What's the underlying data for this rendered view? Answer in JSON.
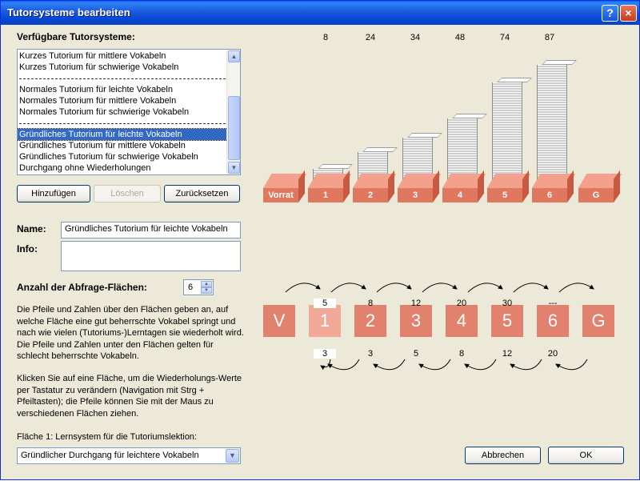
{
  "window": {
    "title": "Tutorsysteme bearbeiten",
    "help_button": "?",
    "close_button": "×"
  },
  "list_section": {
    "label": "Verfügbare Tutorsysteme:"
  },
  "list_items": [
    {
      "label": "Kurzes Tutorium für mittlere Vokabeln",
      "sep": false,
      "sel": false
    },
    {
      "label": "Kurzes Tutorium für schwierige Vokabeln",
      "sep": false,
      "sel": false
    },
    {
      "label": "",
      "sep": true,
      "sel": false
    },
    {
      "label": "Normales Tutorium für leichte Vokabeln",
      "sep": false,
      "sel": false
    },
    {
      "label": "Normales Tutorium für mittlere Vokabeln",
      "sep": false,
      "sel": false
    },
    {
      "label": "Normales Tutorium für schwierige Vokabeln",
      "sep": false,
      "sel": false
    },
    {
      "label": "",
      "sep": true,
      "sel": false
    },
    {
      "label": "Gründliches Tutorium für leichte Vokabeln",
      "sep": false,
      "sel": true
    },
    {
      "label": "Gründliches Tutorium für mittlere Vokabeln",
      "sep": false,
      "sel": false
    },
    {
      "label": "Gründliches Tutorium für schwierige Vokabeln",
      "sep": false,
      "sel": false
    },
    {
      "label": "Durchgang ohne Wiederholungen",
      "sep": false,
      "sel": false
    }
  ],
  "buttons": {
    "add": "Hinzufügen",
    "delete": "Löschen",
    "reset": "Zurücksetzen",
    "cancel": "Abbrechen",
    "ok": "OK"
  },
  "form": {
    "name_label": "Name:",
    "name_value": "Gründliches Tutorium für leichte Vokabeln",
    "info_label": "Info:",
    "info_value": "",
    "areas_label": "Anzahl der Abfrage-Flächen:",
    "areas_value": "6"
  },
  "help_text_1": "Die Pfeile und Zahlen über den Flächen geben an, auf welche Fläche eine gut beherrschte Vokabel springt und nach wie vielen (Tutoriums-)Lerntagen sie wiederholt wird. Die Pfeile und Zahlen unter den Flächen gelten für schlecht beherrschte Vokabeln.",
  "help_text_2": "Klicken Sie auf eine Fläche, um die Wiederholungs-Werte per Tastatur zu verändern (Navigation mit Strg + Pfeiltasten); die Pfeile können Sie mit der Maus zu verschiedenen Flächen ziehen.",
  "area1_label": "Fläche 1: Lernsystem für die Tutoriumslektion:",
  "area1_value": "Gründlicher Durchgang für leichtere Vokabeln",
  "boxes": [
    {
      "label": "Vorrat",
      "count": ""
    },
    {
      "label": "1",
      "count": "8"
    },
    {
      "label": "2",
      "count": "24"
    },
    {
      "label": "3",
      "count": "34"
    },
    {
      "label": "4",
      "count": "48"
    },
    {
      "label": "5",
      "count": "74"
    },
    {
      "label": "6",
      "count": "87"
    },
    {
      "label": "G",
      "count": ""
    }
  ],
  "chart_data": {
    "type": "bar",
    "categories": [
      "1",
      "2",
      "3",
      "4",
      "5",
      "6"
    ],
    "values": [
      8,
      24,
      34,
      48,
      74,
      87
    ]
  },
  "tiles": [
    {
      "label": "V",
      "top": "",
      "bottom": ""
    },
    {
      "label": "1",
      "top": "5",
      "bottom": "3"
    },
    {
      "label": "2",
      "top": "8",
      "bottom": "3"
    },
    {
      "label": "3",
      "top": "12",
      "bottom": "5"
    },
    {
      "label": "4",
      "top": "20",
      "bottom": "8"
    },
    {
      "label": "5",
      "top": "30",
      "bottom": "12"
    },
    {
      "label": "6",
      "top": "---",
      "bottom": "20"
    },
    {
      "label": "G",
      "top": "",
      "bottom": ""
    }
  ],
  "colors": {
    "titlebar": "#0A49D6",
    "box": "#E0785F",
    "selection": "#316AC5"
  }
}
